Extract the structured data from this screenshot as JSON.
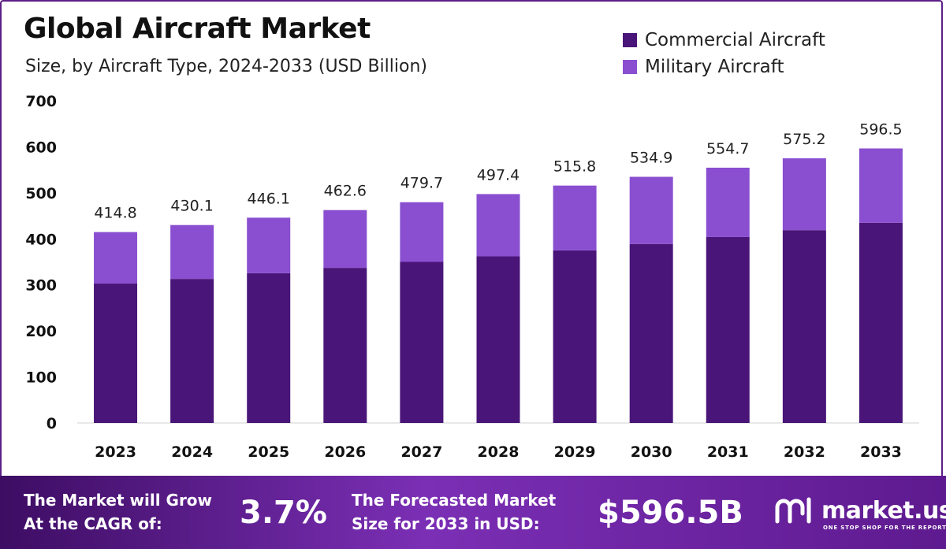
{
  "chart_data": {
    "type": "bar",
    "stacked": true,
    "title": "Global Aircraft Market",
    "subtitle": "Size, by Aircraft Type, 2024-2033 (USD Billion)",
    "categories": [
      "2023",
      "2024",
      "2025",
      "2026",
      "2027",
      "2028",
      "2029",
      "2030",
      "2031",
      "2032",
      "2033"
    ],
    "series": [
      {
        "name": "Commercial Aircraft",
        "color": "#4a1578",
        "values": [
          303.0,
          313.0,
          325.5,
          337.0,
          350.0,
          362.0,
          375.0,
          389.0,
          404.0,
          419.0,
          435.0
        ]
      },
      {
        "name": "Military Aircraft",
        "color": "#8a4fd0",
        "values": [
          111.8,
          117.1,
          120.6,
          125.6,
          129.7,
          135.4,
          140.8,
          145.9,
          150.7,
          156.2,
          161.5
        ]
      }
    ],
    "totals": [
      "414.8",
      "430.1",
      "446.1",
      "462.6",
      "479.7",
      "497.4",
      "515.8",
      "534.9",
      "554.7",
      "575.2",
      "596.5"
    ],
    "yticks": [
      0,
      100,
      200,
      300,
      400,
      500,
      600,
      700
    ],
    "ylim": [
      0,
      700
    ],
    "xlabel": "",
    "ylabel": "",
    "legend_position": "top-right"
  },
  "footer": {
    "cagr_label_line1": "The Market will Grow",
    "cagr_label_line2": "At the CAGR of:",
    "cagr_value": "3.7%",
    "forecast_label_line1": "The Forecasted Market",
    "forecast_label_line2": "Size for 2033 in USD:",
    "forecast_value": "$596.5B",
    "brand_name": "market.us",
    "brand_tagline": "ONE STOP SHOP FOR THE REPORTS"
  },
  "colors": {
    "commercial": "#4a1578",
    "military": "#8a4fd0"
  }
}
